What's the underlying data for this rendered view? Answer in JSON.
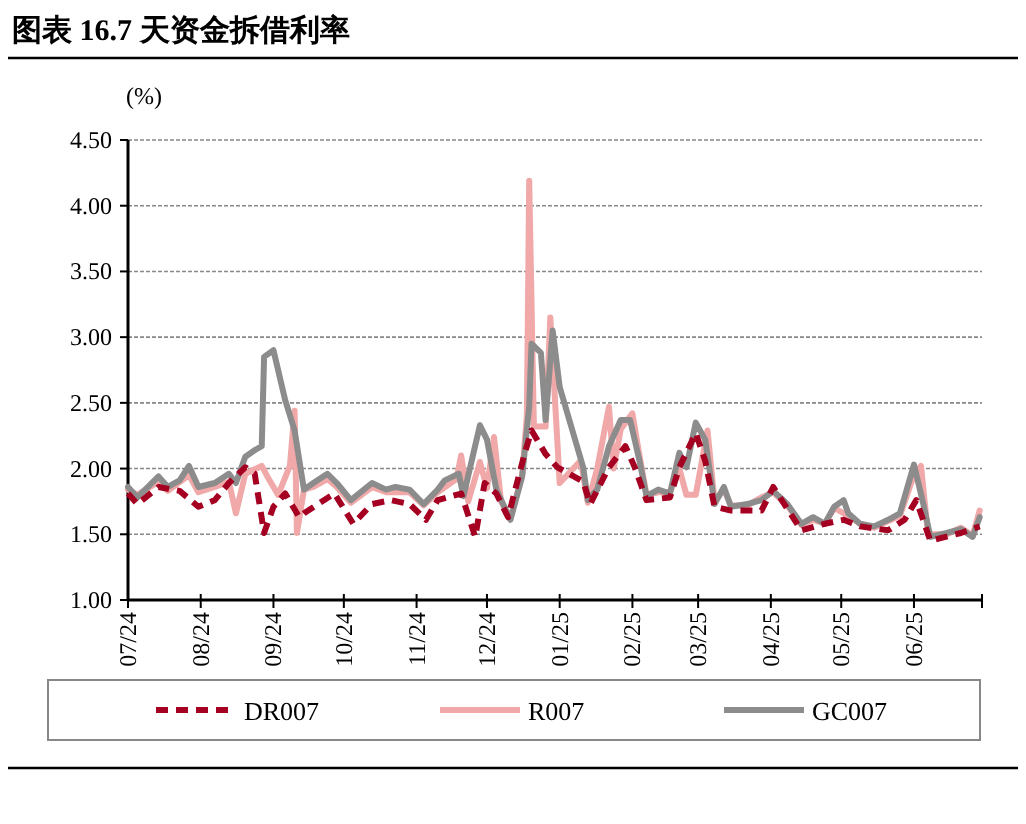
{
  "chart_data": {
    "type": "line",
    "title": "图表 16.7 天资金拆借利率",
    "ylabel": "(%)",
    "xlim": [
      "2024-07-01",
      "2025-06-30"
    ],
    "xticks": [
      {
        "value": "2024-07-01",
        "label": "07/24"
      },
      {
        "value": "2024-08-01",
        "label": "08/24"
      },
      {
        "value": "2024-09-01",
        "label": "09/24"
      },
      {
        "value": "2024-10-01",
        "label": "10/24"
      },
      {
        "value": "2024-11-01",
        "label": "11/24"
      },
      {
        "value": "2024-12-01",
        "label": "12/24"
      },
      {
        "value": "2025-01-01",
        "label": "01/25"
      },
      {
        "value": "2025-02-01",
        "label": "02/25"
      },
      {
        "value": "2025-03-01",
        "label": "03/25"
      },
      {
        "value": "2025-04-01",
        "label": "04/25"
      },
      {
        "value": "2025-05-01",
        "label": "05/25"
      },
      {
        "value": "2025-06-01",
        "label": "06/25"
      }
    ],
    "ylim": [
      1,
      4.5
    ],
    "yticks": [
      {
        "value": 1,
        "label": "1.00"
      },
      {
        "value": 1.5,
        "label": "1.50"
      },
      {
        "value": 2,
        "label": "2.00"
      },
      {
        "value": 2.5,
        "label": "2.50"
      },
      {
        "value": 3,
        "label": "3.00"
      },
      {
        "value": 3.5,
        "label": "3.50"
      },
      {
        "value": 4,
        "label": "4.00"
      },
      {
        "value": 4.5,
        "label": "4.50"
      }
    ],
    "grid": "y",
    "legend": "bottom",
    "series": [
      {
        "name": "R007",
        "color": "#f0a8a8",
        "line_style": "solid",
        "x": [
          "2024-07-01",
          "2024-07-05",
          "2024-07-14",
          "2024-07-18",
          "2024-07-27",
          "2024-07-31",
          "2024-08-07",
          "2024-08-13",
          "2024-08-16",
          "2024-08-20",
          "2024-08-27",
          "2024-08-30",
          "2024-09-03",
          "2024-09-08",
          "2024-09-10",
          "2024-09-11",
          "2024-09-14",
          "2024-09-18",
          "2024-09-24",
          "2024-09-28",
          "2024-10-04",
          "2024-10-13",
          "2024-10-19",
          "2024-10-29",
          "2024-11-04",
          "2024-11-10",
          "2024-11-18",
          "2024-11-20",
          "2024-11-23",
          "2024-11-28",
          "2024-12-01",
          "2024-12-04",
          "2024-12-07",
          "2024-12-11",
          "2024-12-16",
          "2024-12-18",
          "2024-12-19",
          "2024-12-21",
          "2024-12-26",
          "2024-12-28",
          "2025-01-01",
          "2025-01-10",
          "2025-01-13",
          "2025-01-17",
          "2025-01-22",
          "2025-01-24",
          "2025-01-27",
          "2025-02-01",
          "2025-02-04",
          "2025-02-07",
          "2025-02-12",
          "2025-02-17",
          "2025-02-21",
          "2025-02-24",
          "2025-02-28",
          "2025-03-05",
          "2025-03-08",
          "2025-03-12",
          "2025-03-15",
          "2025-03-22",
          "2025-03-28",
          "2025-04-02",
          "2025-04-08",
          "2025-04-14",
          "2025-04-19",
          "2025-04-24",
          "2025-04-28",
          "2025-05-04",
          "2025-05-09",
          "2025-05-15",
          "2025-05-21",
          "2025-05-26",
          "2025-06-01",
          "2025-06-04",
          "2025-06-07",
          "2025-06-15",
          "2025-06-21",
          "2025-06-26",
          "2025-06-29"
        ],
        "values": [
          1.84,
          1.8,
          1.9,
          1.83,
          1.95,
          1.82,
          1.86,
          1.9,
          1.66,
          1.96,
          2.02,
          1.92,
          1.8,
          2.02,
          2.44,
          1.51,
          1.84,
          1.86,
          1.92,
          1.86,
          1.74,
          1.86,
          1.82,
          1.82,
          1.72,
          1.82,
          1.92,
          2.1,
          1.75,
          2.05,
          1.85,
          2.24,
          1.75,
          1.62,
          1.95,
          2.4,
          4.19,
          2.32,
          2.32,
          3.15,
          1.89,
          2.06,
          1.74,
          2.0,
          2.47,
          2.0,
          2.3,
          2.42,
          2.1,
          1.8,
          1.82,
          1.82,
          2.0,
          1.8,
          1.8,
          2.29,
          1.75,
          1.84,
          1.72,
          1.72,
          1.78,
          1.82,
          1.72,
          1.57,
          1.61,
          1.58,
          1.7,
          1.64,
          1.58,
          1.55,
          1.6,
          1.64,
          1.95,
          2.02,
          1.5,
          1.5,
          1.55,
          1.49,
          1.68
        ]
      },
      {
        "name": "GC007",
        "color": "#8c8c8c",
        "line_style": "solid",
        "x": [
          "2024-07-01",
          "2024-07-05",
          "2024-07-14",
          "2024-07-18",
          "2024-07-23",
          "2024-07-27",
          "2024-07-31",
          "2024-08-07",
          "2024-08-13",
          "2024-08-16",
          "2024-08-20",
          "2024-08-24",
          "2024-08-27",
          "2024-08-28",
          "2024-09-01",
          "2024-09-06",
          "2024-09-10",
          "2024-09-14",
          "2024-09-18",
          "2024-09-24",
          "2024-09-28",
          "2024-10-04",
          "2024-10-13",
          "2024-10-19",
          "2024-10-23",
          "2024-10-29",
          "2024-11-04",
          "2024-11-10",
          "2024-11-13",
          "2024-11-19",
          "2024-11-21",
          "2024-11-28",
          "2024-12-01",
          "2024-12-05",
          "2024-12-11",
          "2024-12-16",
          "2024-12-19",
          "2024-12-20",
          "2024-12-24",
          "2024-12-26",
          "2024-12-29",
          "2025-01-01",
          "2025-01-11",
          "2025-01-13",
          "2025-01-17",
          "2025-01-22",
          "2025-01-27",
          "2025-01-31",
          "2025-02-04",
          "2025-02-07",
          "2025-02-12",
          "2025-02-17",
          "2025-02-21",
          "2025-02-24",
          "2025-02-28",
          "2025-03-04",
          "2025-03-08",
          "2025-03-12",
          "2025-03-15",
          "2025-03-22",
          "2025-03-28",
          "2025-04-02",
          "2025-04-08",
          "2025-04-14",
          "2025-04-19",
          "2025-04-24",
          "2025-04-28",
          "2025-05-02",
          "2025-05-04",
          "2025-05-09",
          "2025-05-15",
          "2025-05-21",
          "2025-05-26",
          "2025-06-01",
          "2025-06-05",
          "2025-06-08",
          "2025-06-15",
          "2025-06-21",
          "2025-06-26",
          "2025-06-29"
        ],
        "values": [
          1.86,
          1.78,
          1.94,
          1.86,
          1.91,
          2.02,
          1.86,
          1.89,
          1.96,
          1.89,
          2.09,
          2.14,
          2.17,
          2.85,
          2.9,
          2.52,
          2.29,
          1.84,
          1.89,
          1.96,
          1.89,
          1.76,
          1.89,
          1.84,
          1.86,
          1.84,
          1.73,
          1.84,
          1.91,
          1.96,
          1.79,
          2.33,
          2.22,
          1.84,
          1.61,
          1.94,
          2.47,
          2.95,
          2.88,
          2.37,
          3.05,
          2.62,
          2.01,
          1.76,
          1.84,
          2.17,
          2.37,
          2.37,
          2.06,
          1.79,
          1.84,
          1.81,
          2.12,
          2.01,
          2.35,
          2.22,
          1.73,
          1.86,
          1.71,
          1.73,
          1.76,
          1.83,
          1.73,
          1.58,
          1.63,
          1.58,
          1.71,
          1.76,
          1.66,
          1.58,
          1.56,
          1.61,
          1.66,
          2.03,
          1.73,
          1.48,
          1.51,
          1.54,
          1.48,
          1.63
        ]
      },
      {
        "name": "DR007",
        "color": "#a50021",
        "line_style": "dashed",
        "x": [
          "2024-07-01",
          "2024-07-05",
          "2024-07-14",
          "2024-07-23",
          "2024-07-31",
          "2024-08-07",
          "2024-08-13",
          "2024-08-20",
          "2024-08-24",
          "2024-08-28",
          "2024-09-01",
          "2024-09-06",
          "2024-09-12",
          "2024-09-14",
          "2024-09-20",
          "2024-09-27",
          "2024-10-05",
          "2024-10-13",
          "2024-10-21",
          "2024-10-29",
          "2024-11-05",
          "2024-11-10",
          "2024-11-20",
          "2024-11-26",
          "2024-11-30",
          "2024-12-05",
          "2024-12-10",
          "2024-12-17",
          "2024-12-20",
          "2024-12-26",
          "2024-12-31",
          "2025-01-11",
          "2025-01-14",
          "2025-01-22",
          "2025-01-29",
          "2025-02-02",
          "2025-02-07",
          "2025-02-17",
          "2025-02-21",
          "2025-02-28",
          "2025-03-04",
          "2025-03-08",
          "2025-03-15",
          "2025-03-28",
          "2025-04-02",
          "2025-04-14",
          "2025-04-24",
          "2025-05-02",
          "2025-05-09",
          "2025-05-21",
          "2025-05-28",
          "2025-06-02",
          "2025-06-08",
          "2025-06-21",
          "2025-06-29"
        ],
        "values": [
          1.81,
          1.73,
          1.86,
          1.83,
          1.71,
          1.76,
          1.89,
          2.01,
          1.96,
          1.51,
          1.71,
          1.81,
          1.63,
          1.66,
          1.73,
          1.81,
          1.58,
          1.73,
          1.76,
          1.73,
          1.61,
          1.76,
          1.81,
          1.48,
          1.89,
          1.81,
          1.63,
          2.11,
          2.29,
          2.11,
          2.01,
          1.9,
          1.73,
          2.01,
          2.17,
          2.01,
          1.76,
          1.78,
          2.01,
          2.27,
          2.06,
          1.71,
          1.68,
          1.68,
          1.86,
          1.53,
          1.58,
          1.61,
          1.56,
          1.53,
          1.61,
          1.76,
          1.45,
          1.51,
          1.56
        ]
      }
    ]
  }
}
